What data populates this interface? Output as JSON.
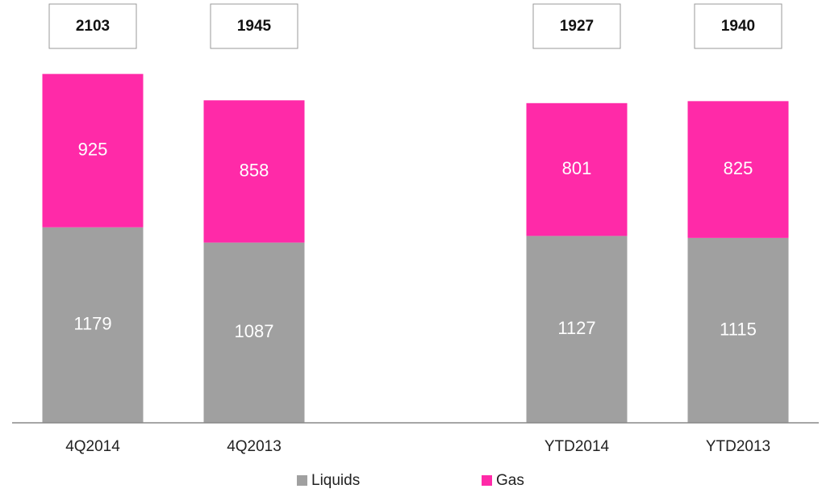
{
  "chart_data": {
    "type": "stacked_bar",
    "categories": [
      "4Q2014",
      "4Q2013",
      null,
      "YTD2014",
      "YTD2013"
    ],
    "series": [
      {
        "name": "Liquids",
        "color": "#a0a0a0",
        "values": [
          1179,
          1087,
          null,
          1127,
          1115
        ]
      },
      {
        "name": "Gas",
        "color": "#ff2aa8",
        "values": [
          925,
          858,
          null,
          801,
          825
        ]
      }
    ],
    "totals": [
      2103,
      1945,
      null,
      1927,
      1940
    ],
    "ylim": [
      0,
      2550
    ]
  }
}
